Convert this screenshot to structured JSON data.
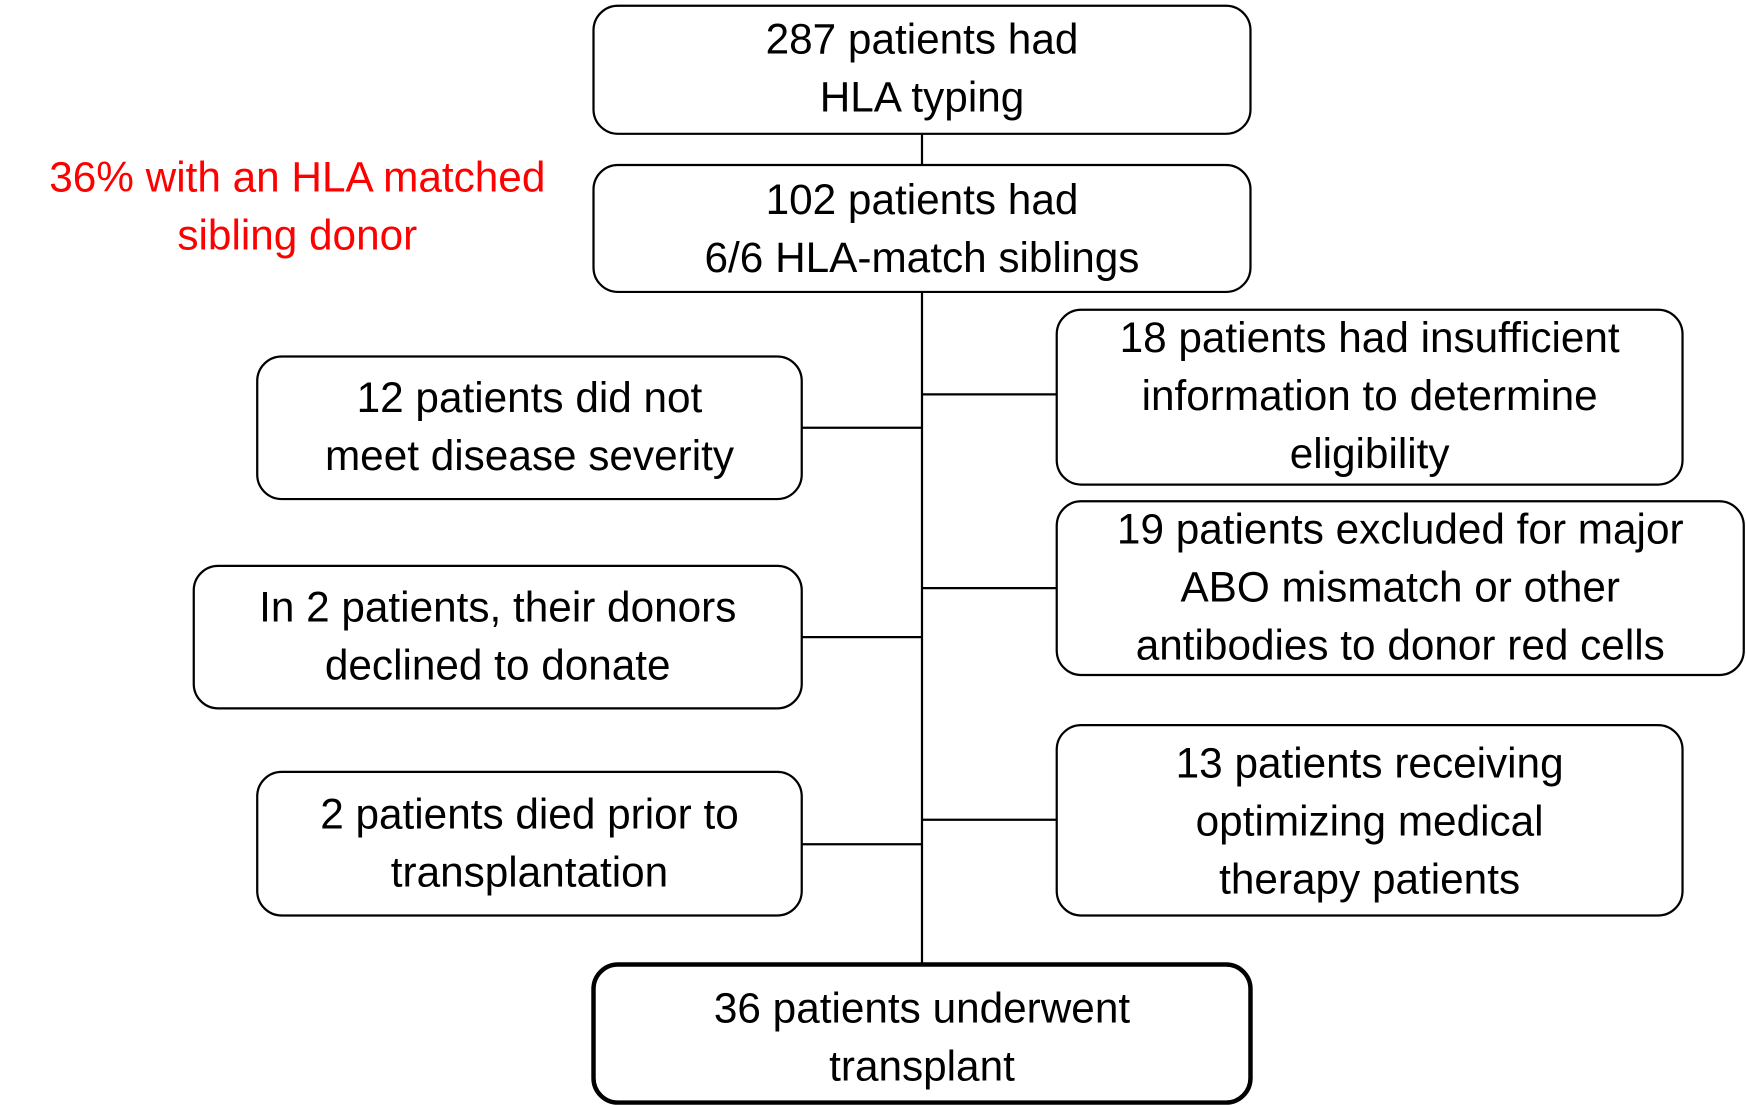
{
  "nodes": [
    {
      "lines": [
        "287 patients had",
        "HLA typing"
      ]
    },
    {
      "lines": [
        "102 patients had",
        "6/6 HLA-match siblings"
      ]
    },
    {
      "lines": [
        "12 patients did not",
        "meet disease severity"
      ]
    },
    {
      "lines": [
        "18 patients had insufficient",
        "information to determine",
        "eligibility"
      ]
    },
    {
      "lines": [
        "In 2 patients, their donors",
        "declined to donate"
      ]
    },
    {
      "lines": [
        "19 patients excluded for major",
        "ABO mismatch or other",
        "antibodies to donor red cells"
      ]
    },
    {
      "lines": [
        "2 patients died prior to",
        "transplantation"
      ]
    },
    {
      "lines": [
        "13 patients receiving",
        "optimizing medical",
        "therapy patients"
      ]
    },
    {
      "lines": [
        "36 patients underwent",
        "transplant"
      ]
    }
  ],
  "annotation": {
    "lines": [
      "36% with an HLA matched",
      "sibling donor"
    ]
  }
}
